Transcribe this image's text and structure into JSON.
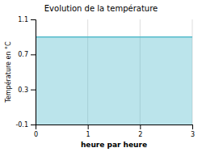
{
  "chart_data": {
    "type": "area",
    "title": "Evolution de la température",
    "x_label": "heure par heure",
    "y_label": "Température en °C",
    "x": [
      0,
      3
    ],
    "values": [
      0.9,
      0.9
    ],
    "color": "#55bbcc",
    "xlim": [
      0,
      3
    ],
    "ylim": [
      -0.1,
      1.1
    ],
    "xticks": [
      0,
      1,
      2,
      3
    ],
    "yticks": [
      -0.1,
      0.3,
      0.7,
      1.1
    ],
    "grid": "x"
  }
}
